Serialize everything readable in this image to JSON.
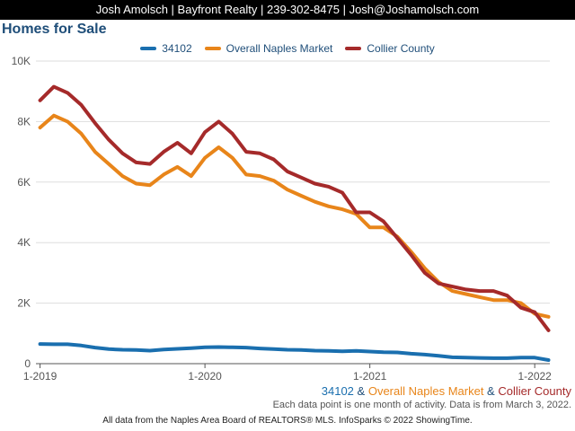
{
  "header": {
    "contact": "Josh Amolsch | Bayfront Realty | 239-302-8475 | Josh@Joshamolsch.com"
  },
  "page_title": "Homes for Sale",
  "colors": {
    "zip": "#1a6faf",
    "naples": "#e8851a",
    "collier": "#a52a2a",
    "grid": "#dddddd",
    "header_bg": "#000000"
  },
  "chart_data": {
    "type": "line",
    "title": "Homes for Sale",
    "x": [
      "2019-01",
      "2019-02",
      "2019-03",
      "2019-04",
      "2019-05",
      "2019-06",
      "2019-07",
      "2019-08",
      "2019-09",
      "2019-10",
      "2019-11",
      "2019-12",
      "2020-01",
      "2020-02",
      "2020-03",
      "2020-04",
      "2020-05",
      "2020-06",
      "2020-07",
      "2020-08",
      "2020-09",
      "2020-10",
      "2020-11",
      "2020-12",
      "2021-01",
      "2021-02",
      "2021-03",
      "2021-04",
      "2021-05",
      "2021-06",
      "2021-07",
      "2021-08",
      "2021-09",
      "2021-10",
      "2021-11",
      "2021-12",
      "2022-01",
      "2022-02"
    ],
    "x_tick_labels": [
      "1-2019",
      "1-2020",
      "1-2021",
      "1-2022"
    ],
    "y_tick_labels": [
      "0",
      "2K",
      "4K",
      "6K",
      "8K",
      "10K"
    ],
    "ylim": [
      0,
      10000
    ],
    "grid": true,
    "legend_position": "top-center",
    "series": [
      {
        "name": "34102",
        "color": "#1a6faf",
        "values": [
          650,
          640,
          640,
          600,
          530,
          480,
          460,
          450,
          430,
          470,
          490,
          510,
          540,
          550,
          540,
          530,
          500,
          480,
          460,
          450,
          430,
          420,
          410,
          420,
          400,
          380,
          370,
          330,
          300,
          260,
          210,
          200,
          190,
          180,
          180,
          200,
          200,
          120
        ]
      },
      {
        "name": "Overall Naples Market",
        "color": "#e8851a",
        "values": [
          7800,
          8200,
          8000,
          7600,
          7000,
          6600,
          6200,
          5950,
          5900,
          6250,
          6500,
          6200,
          6800,
          7150,
          6800,
          6250,
          6200,
          6050,
          5750,
          5550,
          5350,
          5200,
          5100,
          4950,
          4500,
          4500,
          4200,
          3700,
          3150,
          2700,
          2400,
          2300,
          2200,
          2100,
          2100,
          2000,
          1650,
          1550
        ]
      },
      {
        "name": "Collier County",
        "color": "#a52a2a",
        "values": [
          8700,
          9150,
          8950,
          8550,
          7950,
          7400,
          6950,
          6650,
          6600,
          7000,
          7300,
          6950,
          7650,
          8000,
          7600,
          7000,
          6950,
          6750,
          6350,
          6150,
          5950,
          5850,
          5650,
          5000,
          5000,
          4700,
          4150,
          3600,
          3000,
          2650,
          2550,
          2450,
          2400,
          2400,
          2250,
          1850,
          1700,
          1100
        ]
      }
    ]
  },
  "caption": {
    "series_note": {
      "s1": "34102",
      "amp1": " & ",
      "s2": "Overall Naples Market",
      "amp2": " & ",
      "s3": "Collier County"
    },
    "data_note": "Each data point is one month of activity. Data is from March 3, 2022."
  },
  "footer": "All data from the Naples Area Board of REALTORS® MLS. InfoSparks © 2022 ShowingTime."
}
